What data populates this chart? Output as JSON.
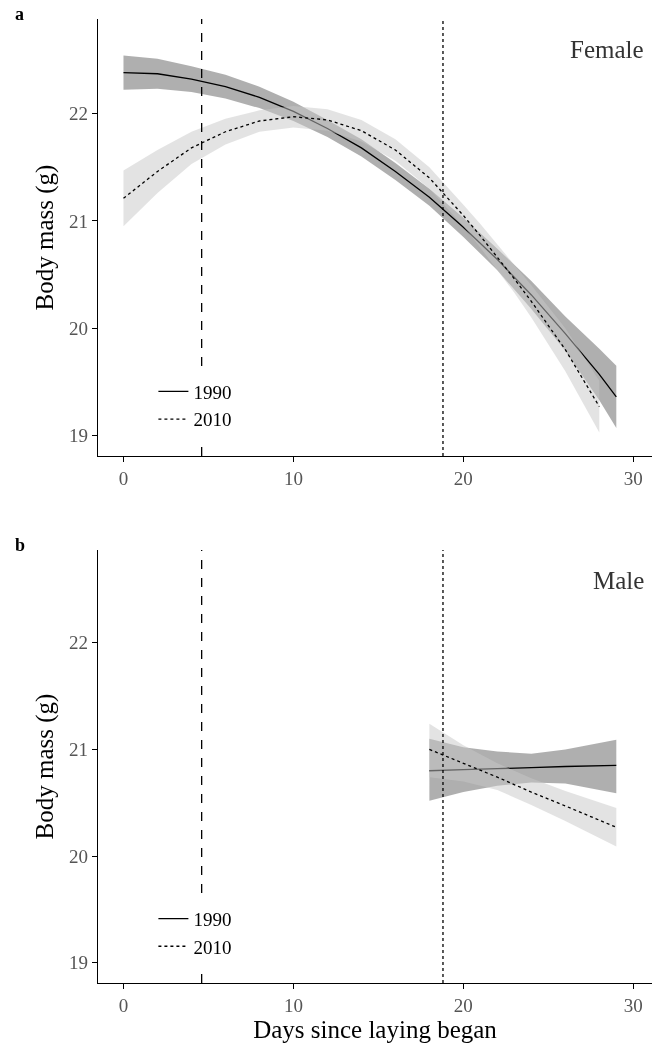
{
  "chart_data": [
    {
      "type": "line",
      "title": "a",
      "annotations": [
        "Female"
      ],
      "ylabel": "Body mass (g)",
      "xlim": [
        -1.5,
        31.1
      ],
      "xticks": [
        0,
        10,
        20,
        30
      ],
      "ylim": [
        18.81,
        22.88
      ],
      "yticks": [
        19,
        20,
        21,
        22
      ],
      "legend": "bottom left",
      "ref_lines": [
        {
          "axis": "x",
          "value": 4.6,
          "line_style": "dashed",
          "color": "#000000"
        },
        {
          "axis": "x",
          "value": 18.8,
          "line_style": "dotted",
          "color": "#000000"
        }
      ],
      "series": [
        {
          "name": "1990",
          "color": "#000000",
          "line_style": "solid",
          "x": [
            0,
            2,
            4,
            6,
            8,
            10,
            12,
            14,
            16,
            18,
            20,
            22,
            24,
            26,
            28,
            29
          ],
          "values": [
            22.38,
            22.37,
            22.32,
            22.25,
            22.15,
            22.02,
            21.86,
            21.68,
            21.46,
            21.22,
            20.94,
            20.64,
            20.31,
            19.95,
            19.57,
            19.36
          ],
          "lower": [
            22.22,
            22.23,
            22.2,
            22.14,
            22.05,
            21.93,
            21.78,
            21.6,
            21.38,
            21.14,
            20.85,
            20.54,
            20.18,
            19.79,
            19.33,
            19.07
          ],
          "upper": [
            22.54,
            22.51,
            22.44,
            22.36,
            22.25,
            22.11,
            21.94,
            21.76,
            21.54,
            21.3,
            21.03,
            20.74,
            20.44,
            20.11,
            19.81,
            19.65
          ]
        },
        {
          "name": "2010",
          "color": "#000000",
          "line_style": "dotted",
          "x": [
            0,
            2,
            4,
            6,
            8,
            10,
            12,
            14,
            16,
            18,
            20,
            21,
            23,
            24,
            26,
            28
          ],
          "values": [
            21.21,
            21.46,
            21.68,
            21.83,
            21.93,
            21.97,
            21.94,
            21.84,
            21.66,
            21.4,
            21.05,
            20.86,
            20.46,
            20.25,
            19.8,
            19.27
          ],
          "lower": [
            20.95,
            21.26,
            21.53,
            21.71,
            21.83,
            21.87,
            21.84,
            21.74,
            21.56,
            21.3,
            20.95,
            20.75,
            20.33,
            20.1,
            19.6,
            19.03
          ],
          "upper": [
            21.47,
            21.66,
            21.83,
            21.95,
            22.03,
            22.07,
            22.04,
            21.94,
            21.76,
            21.5,
            21.15,
            20.97,
            20.59,
            20.4,
            20.0,
            19.51
          ]
        }
      ]
    },
    {
      "type": "line",
      "title": "b",
      "annotations": [
        "Male"
      ],
      "ylabel": "Body mass (g)",
      "xlabel": "Days since laying began",
      "xlim": [
        -1.5,
        31.1
      ],
      "xticks": [
        0,
        10,
        20,
        30
      ],
      "ylim": [
        18.81,
        22.87
      ],
      "yticks": [
        19,
        20,
        21,
        22
      ],
      "legend": "bottom left",
      "ref_lines": [
        {
          "axis": "x",
          "value": 4.6,
          "line_style": "dashed",
          "color": "#000000"
        },
        {
          "axis": "x",
          "value": 18.8,
          "line_style": "dotted",
          "color": "#000000"
        }
      ],
      "series": [
        {
          "name": "1990",
          "color": "#000000",
          "line_style": "solid",
          "x": [
            18,
            20,
            22,
            24,
            26,
            29
          ],
          "values": [
            20.8,
            20.81,
            20.82,
            20.83,
            20.84,
            20.85
          ],
          "lower": [
            20.52,
            20.6,
            20.66,
            20.69,
            20.68,
            20.59
          ],
          "upper": [
            21.1,
            21.02,
            20.98,
            20.96,
            21.0,
            21.09
          ]
        },
        {
          "name": "2010",
          "color": "#000000",
          "line_style": "dotted",
          "x": [
            18,
            20,
            22,
            24,
            26,
            29
          ],
          "values": [
            21.0,
            20.87,
            20.74,
            20.6,
            20.47,
            20.27
          ],
          "lower": [
            20.74,
            20.7,
            20.62,
            20.48,
            20.33,
            20.09
          ],
          "upper": [
            21.24,
            21.04,
            20.87,
            20.73,
            20.61,
            20.45
          ]
        }
      ]
    }
  ]
}
